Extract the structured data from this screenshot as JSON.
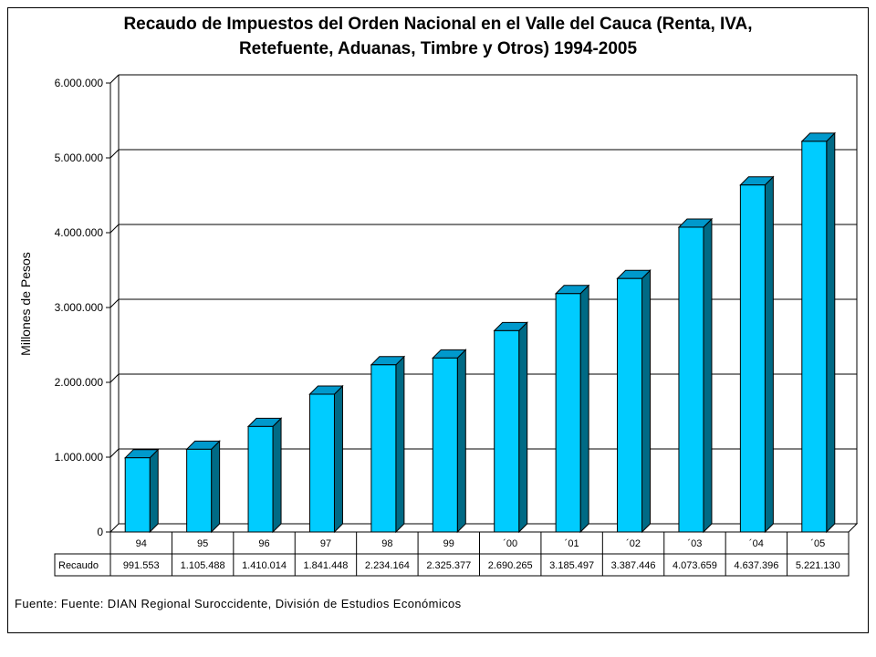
{
  "chart_data": {
    "type": "bar",
    "title": "Recaudo de Impuestos del Orden Nacional en el Valle del Cauca (Renta, IVA,",
    "title_line2": "Retefuente, Aduanas, Timbre y Otros) 1994-2005",
    "ylabel": "Millones de Pesos",
    "xlabel": "",
    "ylim": [
      0,
      6000000
    ],
    "yticks": [
      "0",
      "1.000.000",
      "2.000.000",
      "3.000.000",
      "4.000.000",
      "5.000.000",
      "6.000.000"
    ],
    "grid": true,
    "categories": [
      "94",
      "95",
      "96",
      "97",
      "98",
      "99",
      "´00",
      "´01",
      "´02",
      "´03",
      "´04",
      "´05"
    ],
    "series": [
      {
        "name": "Recaudo",
        "values": [
          991553,
          1105488,
          1410014,
          1841448,
          2234164,
          2325377,
          2690265,
          3185497,
          3387446,
          4073659,
          4637396,
          5221130
        ],
        "labels": [
          "991.553",
          "1.105.488",
          "1.410.014",
          "1.841.448",
          "2.234.164",
          "2.325.377",
          "2.690.265",
          "3.185.497",
          "3.387.446",
          "4.073.659",
          "4.637.396",
          "5.221.130"
        ]
      }
    ],
    "colors": {
      "bar_front": "#00ccff",
      "bar_side": "#006a85",
      "bar_top": "#0099cc",
      "outline": "#000000"
    }
  },
  "source": "Fuente: Fuente: DIAN Regional  Suroccidente, División de Estudios Económicos"
}
